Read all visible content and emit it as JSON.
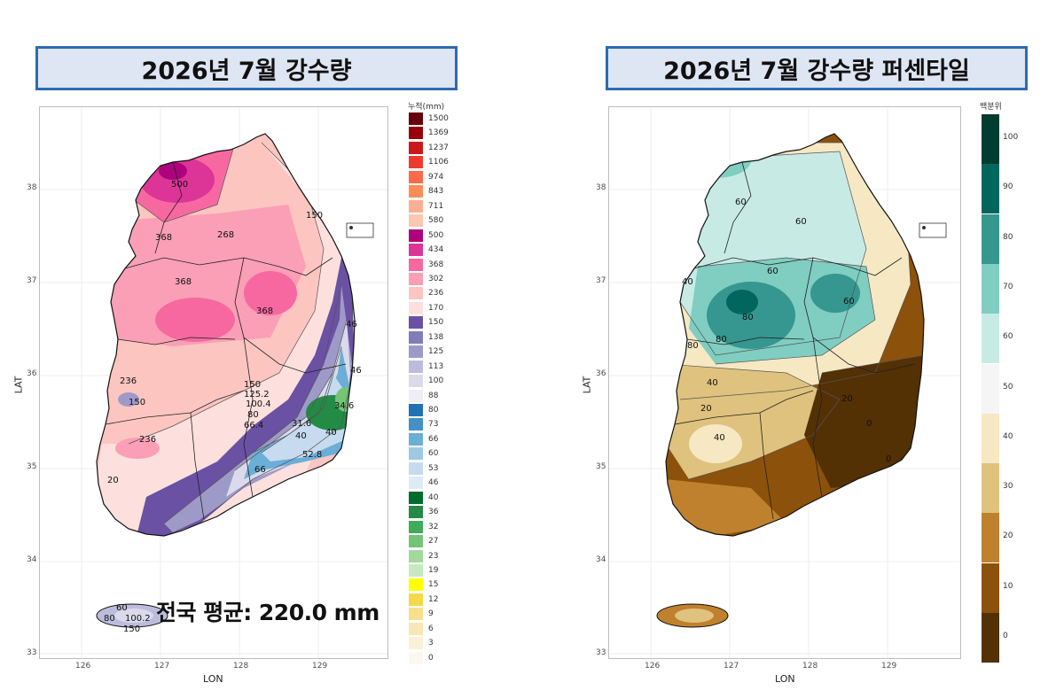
{
  "left_panel": {
    "title": "2026년 7월 강수량",
    "legend_title": "누적(mm)",
    "legend": [
      {
        "label": "1500",
        "color": "#67000d"
      },
      {
        "label": "1369",
        "color": "#99000d"
      },
      {
        "label": "1237",
        "color": "#cb181d"
      },
      {
        "label": "1106",
        "color": "#ef3b2c"
      },
      {
        "label": "974",
        "color": "#fb6a4a"
      },
      {
        "label": "843",
        "color": "#fc8d59"
      },
      {
        "label": "711",
        "color": "#fcae91"
      },
      {
        "label": "580",
        "color": "#fdc7b0"
      },
      {
        "label": "500",
        "color": "#ae017e"
      },
      {
        "label": "434",
        "color": "#dd3497"
      },
      {
        "label": "368",
        "color": "#f768a1"
      },
      {
        "label": "302",
        "color": "#fa9fb5"
      },
      {
        "label": "236",
        "color": "#fcc5c0"
      },
      {
        "label": "170",
        "color": "#fde0dd"
      },
      {
        "label": "150",
        "color": "#6a51a3"
      },
      {
        "label": "138",
        "color": "#807dba"
      },
      {
        "label": "125",
        "color": "#9e9ac8"
      },
      {
        "label": "113",
        "color": "#bcbddc"
      },
      {
        "label": "100",
        "color": "#dadaeb"
      },
      {
        "label": "88",
        "color": "#efedf5"
      },
      {
        "label": "80",
        "color": "#2171b5"
      },
      {
        "label": "73",
        "color": "#4292c6"
      },
      {
        "label": "66",
        "color": "#6baed6"
      },
      {
        "label": "60",
        "color": "#9ecae1"
      },
      {
        "label": "53",
        "color": "#c6dbef"
      },
      {
        "label": "46",
        "color": "#deebf7"
      },
      {
        "label": "40",
        "color": "#006d2c"
      },
      {
        "label": "36",
        "color": "#238b45"
      },
      {
        "label": "32",
        "color": "#41ab5d"
      },
      {
        "label": "27",
        "color": "#74c476"
      },
      {
        "label": "23",
        "color": "#a1d99b"
      },
      {
        "label": "19",
        "color": "#c7e9c0"
      },
      {
        "label": "15",
        "color": "#ffff00"
      },
      {
        "label": "12",
        "color": "#f5d94a"
      },
      {
        "label": "9",
        "color": "#f6e08c"
      },
      {
        "label": "6",
        "color": "#f8e6b3"
      },
      {
        "label": "3",
        "color": "#fbefd6"
      },
      {
        "label": "0",
        "color": "#fdf8ee"
      }
    ],
    "x_ticks": [
      "126",
      "127",
      "128",
      "129"
    ],
    "y_ticks": [
      "38",
      "37",
      "36",
      "35",
      "34",
      "33"
    ],
    "x_axis_title": "LON",
    "y_axis_title": "LAT",
    "contour_labels": [
      "500",
      "368",
      "268",
      "368",
      "368",
      "150",
      "236",
      "150",
      "236",
      "150",
      "125.2",
      "100.4",
      "80",
      "66.4",
      "66",
      "46",
      "31.6",
      "40",
      "34.6",
      "40",
      "52.8",
      "60",
      "80",
      "100.2",
      "150",
      "46",
      "20"
    ],
    "average_text": "전국 평균: 220.0 mm"
  },
  "right_panel": {
    "title": "2026년 7월 강수량 퍼센타일",
    "legend_title": "백분위",
    "legend": [
      {
        "label": "100",
        "color": "#003c30"
      },
      {
        "label": "90",
        "color": "#01665e"
      },
      {
        "label": "80",
        "color": "#35978f"
      },
      {
        "label": "70",
        "color": "#80cdc1"
      },
      {
        "label": "60",
        "color": "#c7eae5"
      },
      {
        "label": "50",
        "color": "#f5f5f5"
      },
      {
        "label": "40",
        "color": "#f6e8c3"
      },
      {
        "label": "30",
        "color": "#dfc27d"
      },
      {
        "label": "20",
        "color": "#bf812d"
      },
      {
        "label": "10",
        "color": "#8c510a"
      },
      {
        "label": "0",
        "color": "#543005"
      }
    ],
    "x_ticks": [
      "126",
      "127",
      "128",
      "129"
    ],
    "y_ticks": [
      "38",
      "37",
      "36",
      "35",
      "34",
      "33"
    ],
    "x_axis_title": "LON",
    "y_axis_title": "LAT",
    "contour_labels": [
      "60",
      "60",
      "60",
      "40",
      "80",
      "80",
      "80",
      "60",
      "40",
      "20",
      "20",
      "0",
      "40",
      "0"
    ]
  }
}
